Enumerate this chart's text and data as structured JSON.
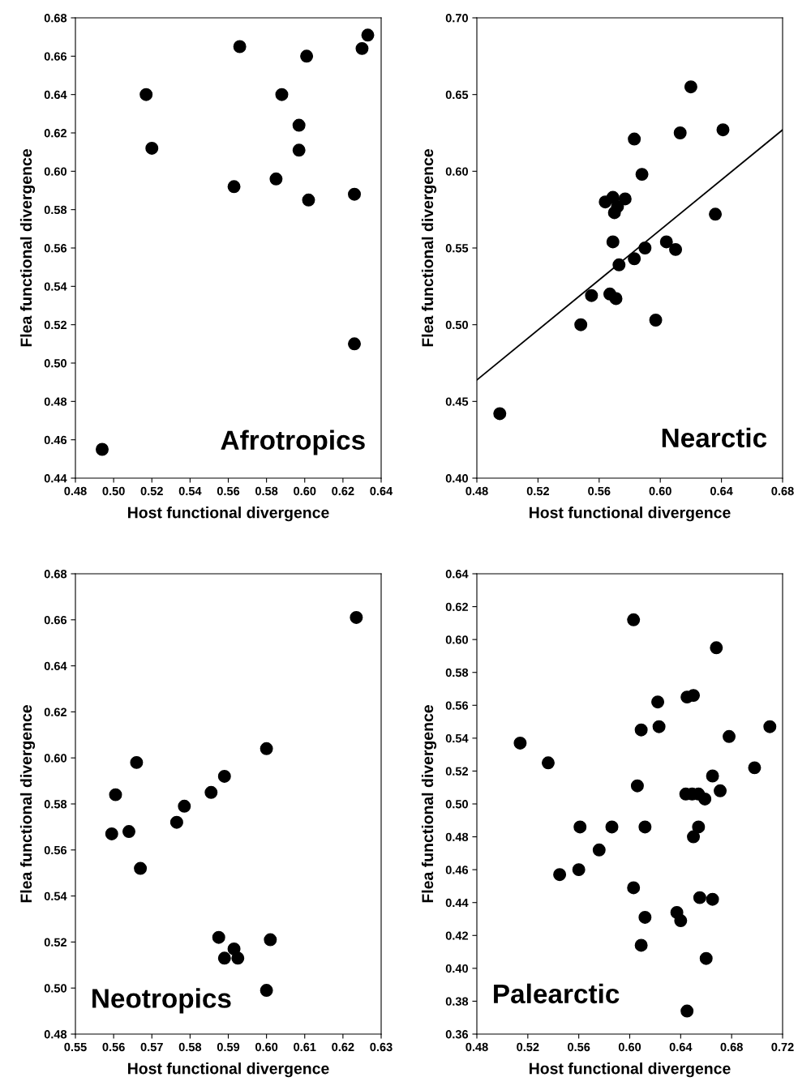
{
  "chart_data": [
    {
      "type": "scatter",
      "xlabel": "Host functional divergence",
      "ylabel": "Flea functional divergence",
      "annotations": [
        "Afrotropics"
      ],
      "xlim": [
        0.48,
        0.64
      ],
      "xticks": [
        {
          "value": 0.48,
          "label": "0.48"
        },
        {
          "value": 0.5,
          "label": "0.50"
        },
        {
          "value": 0.52,
          "label": "0.52"
        },
        {
          "value": 0.54,
          "label": "0.54"
        },
        {
          "value": 0.56,
          "label": "0.56"
        },
        {
          "value": 0.58,
          "label": "0.58"
        },
        {
          "value": 0.6,
          "label": "0.60"
        },
        {
          "value": 0.62,
          "label": "0.62"
        },
        {
          "value": 0.64,
          "label": "0.64"
        }
      ],
      "ylim": [
        0.44,
        0.68
      ],
      "yticks": [
        {
          "value": 0.44,
          "label": "0.44"
        },
        {
          "value": 0.46,
          "label": "0.46"
        },
        {
          "value": 0.48,
          "label": "0.48"
        },
        {
          "value": 0.5,
          "label": "0.50"
        },
        {
          "value": 0.52,
          "label": "0.52"
        },
        {
          "value": 0.54,
          "label": "0.54"
        },
        {
          "value": 0.56,
          "label": "0.56"
        },
        {
          "value": 0.58,
          "label": "0.58"
        },
        {
          "value": 0.6,
          "label": "0.60"
        },
        {
          "value": 0.62,
          "label": "0.62"
        },
        {
          "value": 0.64,
          "label": "0.64"
        },
        {
          "value": 0.66,
          "label": "0.66"
        },
        {
          "value": 0.68,
          "label": "0.68"
        }
      ],
      "series": [
        {
          "marker": "circle",
          "color": "#000000",
          "x": [
            0.494,
            0.517,
            0.52,
            0.563,
            0.566,
            0.585,
            0.588,
            0.597,
            0.597,
            0.601,
            0.602,
            0.626,
            0.626,
            0.63,
            0.633
          ],
          "values": [
            0.455,
            0.64,
            0.612,
            0.592,
            0.665,
            0.596,
            0.64,
            0.624,
            0.611,
            0.66,
            0.585,
            0.588,
            0.51,
            0.664,
            0.671
          ]
        }
      ]
    },
    {
      "type": "scatter",
      "xlabel": "Host functional divergence",
      "ylabel": "Flea functional divergence",
      "annotations": [
        "Nearctic"
      ],
      "xlim": [
        0.48,
        0.68
      ],
      "xticks": [
        {
          "value": 0.48,
          "label": "0.48"
        },
        {
          "value": 0.52,
          "label": "0.52"
        },
        {
          "value": 0.56,
          "label": "0.56"
        },
        {
          "value": 0.6,
          "label": "0.60"
        },
        {
          "value": 0.64,
          "label": "0.64"
        },
        {
          "value": 0.68,
          "label": "0.68"
        }
      ],
      "ylim": [
        0.4,
        0.7
      ],
      "yticks": [
        {
          "value": 0.4,
          "label": "0.40"
        },
        {
          "value": 0.45,
          "label": "0.45"
        },
        {
          "value": 0.5,
          "label": "0.50"
        },
        {
          "value": 0.55,
          "label": "0.55"
        },
        {
          "value": 0.6,
          "label": "0.60"
        },
        {
          "value": 0.65,
          "label": "0.65"
        },
        {
          "value": 0.7,
          "label": "0.70"
        }
      ],
      "series": [
        {
          "marker": "circle",
          "color": "#000000",
          "x": [
            0.495,
            0.548,
            0.555,
            0.564,
            0.567,
            0.569,
            0.569,
            0.57,
            0.571,
            0.572,
            0.573,
            0.577,
            0.583,
            0.583,
            0.588,
            0.59,
            0.597,
            0.604,
            0.61,
            0.613,
            0.62,
            0.636,
            0.641
          ],
          "values": [
            0.442,
            0.5,
            0.519,
            0.58,
            0.52,
            0.583,
            0.554,
            0.573,
            0.517,
            0.577,
            0.539,
            0.582,
            0.621,
            0.543,
            0.598,
            0.55,
            0.503,
            0.554,
            0.549,
            0.625,
            0.655,
            0.572,
            0.627
          ]
        },
        {
          "type": "line",
          "color": "#000000",
          "line_style": "solid",
          "x": [
            0.48,
            0.68
          ],
          "values": [
            0.464,
            0.627
          ]
        }
      ]
    },
    {
      "type": "scatter",
      "xlabel": "Host functional divergence",
      "ylabel": "Flea functional divergence",
      "annotations": [
        "Neotropics"
      ],
      "xlim": [
        0.55,
        0.63
      ],
      "xticks": [
        {
          "value": 0.55,
          "label": "0.55"
        },
        {
          "value": 0.56,
          "label": "0.56"
        },
        {
          "value": 0.57,
          "label": "0.57"
        },
        {
          "value": 0.58,
          "label": "0.58"
        },
        {
          "value": 0.59,
          "label": "0.59"
        },
        {
          "value": 0.6,
          "label": "0.60"
        },
        {
          "value": 0.61,
          "label": "0.61"
        },
        {
          "value": 0.62,
          "label": "0.62"
        },
        {
          "value": 0.63,
          "label": "0.63"
        }
      ],
      "ylim": [
        0.48,
        0.68
      ],
      "yticks": [
        {
          "value": 0.48,
          "label": "0.48"
        },
        {
          "value": 0.5,
          "label": "0.50"
        },
        {
          "value": 0.52,
          "label": "0.52"
        },
        {
          "value": 0.54,
          "label": "0.54"
        },
        {
          "value": 0.56,
          "label": "0.56"
        },
        {
          "value": 0.58,
          "label": "0.58"
        },
        {
          "value": 0.6,
          "label": "0.60"
        },
        {
          "value": 0.62,
          "label": "0.62"
        },
        {
          "value": 0.64,
          "label": "0.64"
        },
        {
          "value": 0.66,
          "label": "0.66"
        },
        {
          "value": 0.68,
          "label": "0.68"
        }
      ],
      "series": [
        {
          "marker": "circle",
          "color": "#000000",
          "x": [
            0.5595,
            0.5605,
            0.564,
            0.566,
            0.567,
            0.5765,
            0.5785,
            0.5855,
            0.5875,
            0.589,
            0.589,
            0.5915,
            0.5925,
            0.6,
            0.6,
            0.601,
            0.6235
          ],
          "values": [
            0.567,
            0.584,
            0.568,
            0.598,
            0.552,
            0.572,
            0.579,
            0.585,
            0.522,
            0.592,
            0.513,
            0.517,
            0.513,
            0.604,
            0.499,
            0.521,
            0.661
          ]
        }
      ]
    },
    {
      "type": "scatter",
      "xlabel": "Host functional divergence",
      "ylabel": "Flea functional divergence",
      "annotations": [
        "Palearctic"
      ],
      "xlim": [
        0.48,
        0.72
      ],
      "xticks": [
        {
          "value": 0.48,
          "label": "0.48"
        },
        {
          "value": 0.52,
          "label": "0.52"
        },
        {
          "value": 0.56,
          "label": "0.56"
        },
        {
          "value": 0.6,
          "label": "0.60"
        },
        {
          "value": 0.64,
          "label": "0.64"
        },
        {
          "value": 0.68,
          "label": "0.68"
        },
        {
          "value": 0.72,
          "label": "0.72"
        }
      ],
      "ylim": [
        0.36,
        0.64
      ],
      "yticks": [
        {
          "value": 0.36,
          "label": "0.36"
        },
        {
          "value": 0.38,
          "label": "0.38"
        },
        {
          "value": 0.4,
          "label": "0.40"
        },
        {
          "value": 0.42,
          "label": "0.42"
        },
        {
          "value": 0.44,
          "label": "0.44"
        },
        {
          "value": 0.46,
          "label": "0.46"
        },
        {
          "value": 0.48,
          "label": "0.48"
        },
        {
          "value": 0.5,
          "label": "0.50"
        },
        {
          "value": 0.52,
          "label": "0.52"
        },
        {
          "value": 0.54,
          "label": "0.54"
        },
        {
          "value": 0.56,
          "label": "0.56"
        },
        {
          "value": 0.58,
          "label": "0.58"
        },
        {
          "value": 0.6,
          "label": "0.60"
        },
        {
          "value": 0.62,
          "label": "0.62"
        },
        {
          "value": 0.64,
          "label": "0.64"
        }
      ],
      "series": [
        {
          "marker": "circle",
          "color": "#000000",
          "x": [
            0.514,
            0.536,
            0.545,
            0.56,
            0.561,
            0.576,
            0.586,
            0.603,
            0.603,
            0.606,
            0.609,
            0.609,
            0.612,
            0.612,
            0.622,
            0.623,
            0.637,
            0.64,
            0.644,
            0.645,
            0.645,
            0.649,
            0.65,
            0.65,
            0.654,
            0.654,
            0.655,
            0.659,
            0.66,
            0.665,
            0.665,
            0.668,
            0.671,
            0.678,
            0.698,
            0.71
          ],
          "values": [
            0.537,
            0.525,
            0.457,
            0.46,
            0.486,
            0.472,
            0.486,
            0.612,
            0.449,
            0.511,
            0.545,
            0.414,
            0.486,
            0.431,
            0.562,
            0.547,
            0.434,
            0.429,
            0.506,
            0.565,
            0.374,
            0.506,
            0.566,
            0.48,
            0.506,
            0.486,
            0.443,
            0.503,
            0.406,
            0.517,
            0.442,
            0.595,
            0.508,
            0.541,
            0.522,
            0.547
          ]
        }
      ]
    }
  ]
}
